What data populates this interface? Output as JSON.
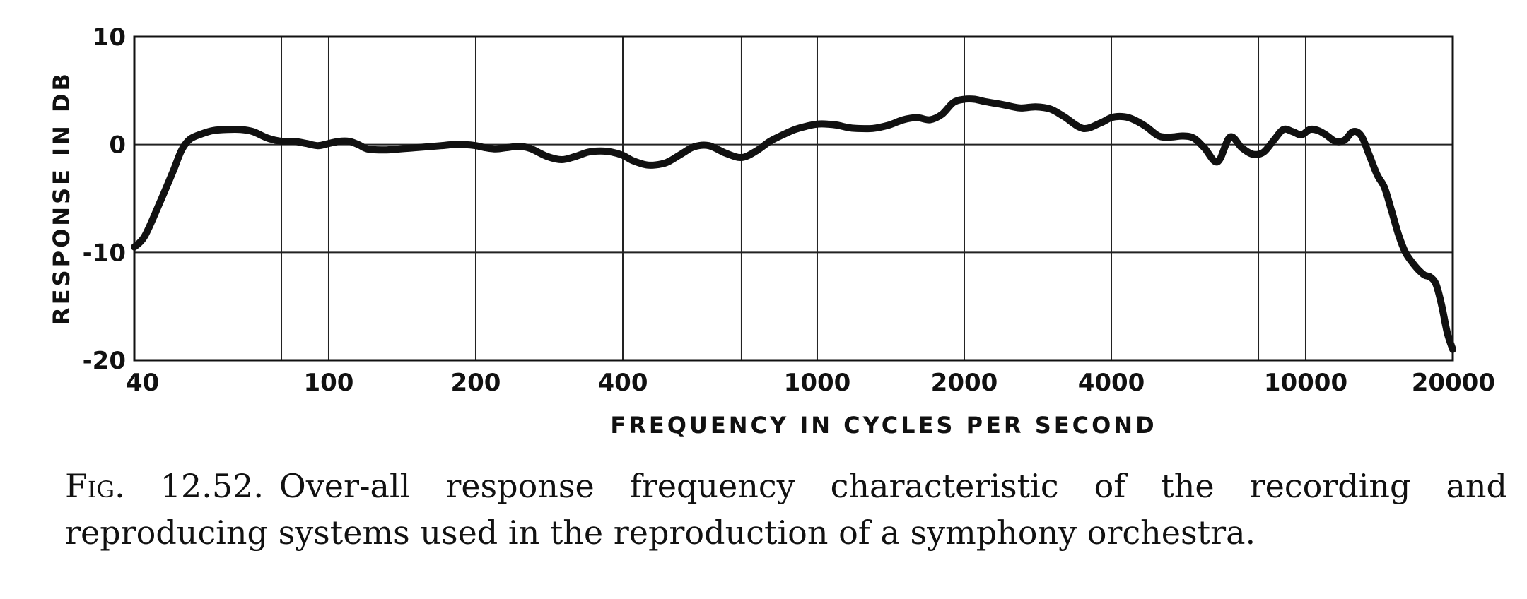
{
  "chart_data": {
    "type": "line",
    "title": "",
    "xlabel": "FREQUENCY IN CYCLES PER SECOND",
    "ylabel": "RESPONSE IN DB",
    "x_scale": "log",
    "xlim": [
      40,
      20000
    ],
    "ylim": [
      -20,
      10
    ],
    "x_ticks": [
      {
        "value": 40,
        "label": "40"
      },
      {
        "value": 100,
        "label": "100"
      },
      {
        "value": 200,
        "label": "200"
      },
      {
        "value": 400,
        "label": "400"
      },
      {
        "value": 1000,
        "label": "1000"
      },
      {
        "value": 2000,
        "label": "2000"
      },
      {
        "value": 4000,
        "label": "4000"
      },
      {
        "value": 10000,
        "label": "10000"
      },
      {
        "value": 20000,
        "label": "20000"
      }
    ],
    "x_grid": [
      40,
      80,
      100,
      200,
      400,
      700,
      1000,
      2000,
      4000,
      8000,
      10000,
      20000
    ],
    "y_ticks": [
      {
        "value": 10,
        "label": "10"
      },
      {
        "value": 0,
        "label": "0"
      },
      {
        "value": -10,
        "label": "-10"
      },
      {
        "value": -20,
        "label": "-20"
      }
    ],
    "grid": true,
    "legend": "none",
    "line_color": "#111111",
    "series": [
      {
        "x": [
          40,
          42,
          45,
          48,
          50,
          52,
          55,
          58,
          62,
          66,
          70,
          75,
          80,
          85,
          90,
          95,
          100,
          105,
          110,
          115,
          120,
          130,
          140,
          150,
          160,
          170,
          180,
          190,
          200,
          210,
          220,
          230,
          240,
          250,
          260,
          280,
          300,
          320,
          340,
          360,
          380,
          400,
          420,
          450,
          480,
          500,
          530,
          560,
          600,
          650,
          700,
          750,
          800,
          850,
          900,
          950,
          1000,
          1050,
          1100,
          1150,
          1200,
          1300,
          1400,
          1500,
          1600,
          1700,
          1800,
          1900,
          2000,
          2100,
          2200,
          2400,
          2600,
          2800,
          3000,
          3200,
          3500,
          3800,
          4000,
          4200,
          4400,
          4700,
          5000,
          5300,
          5600,
          5900,
          6200,
          6600,
          7000,
          7400,
          7800,
          8200,
          8600,
          9000,
          9400,
          9800,
          10200,
          10600,
          11000,
          11500,
          12000,
          12500,
          13000,
          13500,
          14000,
          14500,
          15000,
          15500,
          16000,
          16500,
          17000,
          17500,
          18000,
          18500,
          19000,
          19500,
          20000
        ],
        "y": [
          -9.5,
          -8.5,
          -5.5,
          -2.5,
          -0.5,
          0.5,
          1.0,
          1.3,
          1.4,
          1.4,
          1.2,
          0.6,
          0.3,
          0.3,
          0.1,
          -0.1,
          0.1,
          0.3,
          0.3,
          0.0,
          -0.4,
          -0.5,
          -0.4,
          -0.3,
          -0.2,
          -0.1,
          0.0,
          0.0,
          -0.1,
          -0.3,
          -0.4,
          -0.3,
          -0.2,
          -0.2,
          -0.4,
          -1.1,
          -1.4,
          -1.1,
          -0.7,
          -0.6,
          -0.7,
          -1.0,
          -1.5,
          -1.9,
          -1.8,
          -1.5,
          -0.8,
          -0.2,
          -0.1,
          -0.8,
          -1.2,
          -0.6,
          0.3,
          0.9,
          1.4,
          1.7,
          1.9,
          1.9,
          1.8,
          1.6,
          1.5,
          1.5,
          1.8,
          2.3,
          2.5,
          2.3,
          2.8,
          3.9,
          4.2,
          4.2,
          4.0,
          3.7,
          3.4,
          3.5,
          3.3,
          2.6,
          1.5,
          2.0,
          2.5,
          2.6,
          2.4,
          1.7,
          0.8,
          0.7,
          0.8,
          0.6,
          -0.3,
          -1.6,
          0.7,
          -0.3,
          -0.9,
          -0.7,
          0.4,
          1.4,
          1.2,
          0.9,
          1.4,
          1.3,
          0.9,
          0.3,
          0.4,
          1.2,
          0.8,
          -1.0,
          -2.8,
          -4.0,
          -6.2,
          -8.4,
          -10.0,
          -10.9,
          -11.6,
          -12.1,
          -12.3,
          -13.0,
          -15.0,
          -17.5,
          -19.0
        ]
      }
    ]
  },
  "caption": {
    "label": "Fig. 12.52.",
    "text": "Over-all response frequency characteristic of the recording and reproducing systems used in the reproduction of a symphony orchestra."
  }
}
